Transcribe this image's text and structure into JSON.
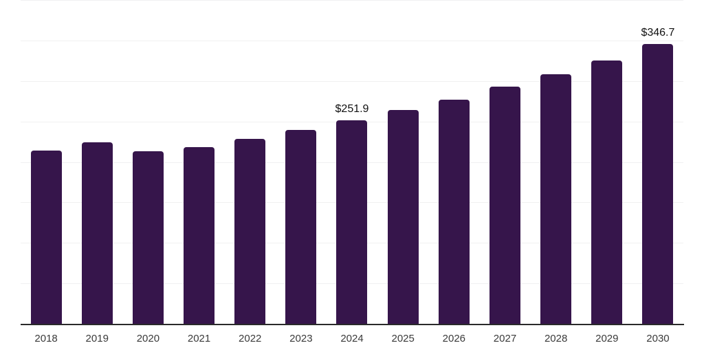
{
  "chart_data": {
    "type": "bar",
    "title": "",
    "xlabel": "",
    "ylabel": "",
    "categories": [
      "2018",
      "2019",
      "2020",
      "2021",
      "2022",
      "2023",
      "2024",
      "2025",
      "2026",
      "2027",
      "2028",
      "2029",
      "2030"
    ],
    "values": [
      214.5,
      225.3,
      213.7,
      218.8,
      229.5,
      240.0,
      251.9,
      264.6,
      278.1,
      293.7,
      308.8,
      326.3,
      346.7
    ],
    "data_labels": [
      null,
      null,
      null,
      null,
      null,
      null,
      "$251.9",
      null,
      null,
      null,
      null,
      null,
      "$346.7"
    ],
    "ylim": [
      0,
      400
    ],
    "grid_step": 50,
    "grid": true,
    "y_tick_labels_visible": false,
    "legend": false,
    "colors": {
      "bar": "#36154B",
      "gridline": "#F0F0F1",
      "axis_line": "#2A2A2A",
      "tick_label": "#3A3A3A",
      "data_label": "#101010",
      "background": "#FFFFFF"
    }
  }
}
